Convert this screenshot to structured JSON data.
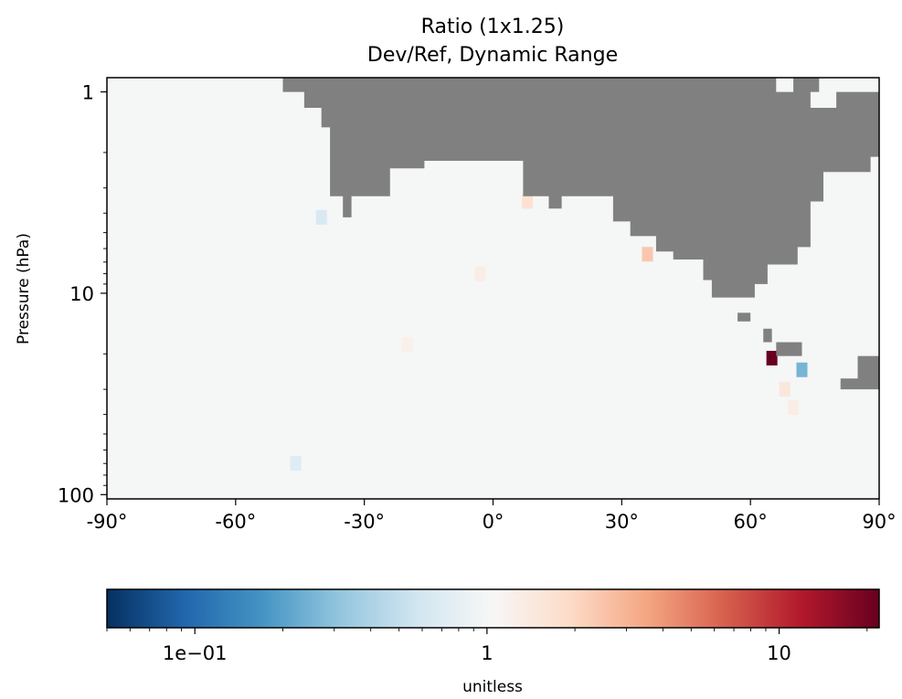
{
  "chart_data": {
    "type": "heatmap",
    "title": "Ratio (1x1.25)",
    "subtitle": "Dev/Ref, Dynamic Range",
    "xlabel": "",
    "ylabel": "Pressure (hPa)",
    "xlim": [
      -90,
      90
    ],
    "ylim": [
      105,
      0.85
    ],
    "y_scale": "log",
    "x_ticks": [
      "-90°",
      "-60°",
      "-30°",
      "0°",
      "30°",
      "60°",
      "90°"
    ],
    "x_tick_values": [
      -90,
      -60,
      -30,
      0,
      30,
      60,
      90
    ],
    "y_ticks": [
      "1",
      "10",
      "100"
    ],
    "y_tick_values": [
      1,
      10,
      100
    ],
    "masked_color": "#808080",
    "background_ratio": 1.0,
    "features": [
      {
        "lat": 65,
        "pressure": 21,
        "ratio": 20
      },
      {
        "lat": 72,
        "pressure": 24,
        "ratio": 0.4
      },
      {
        "lat": 36,
        "pressure": 6.4,
        "ratio": 1.8
      },
      {
        "lat": 8,
        "pressure": 3.5,
        "ratio": 1.4
      },
      {
        "lat": -3,
        "pressure": 8,
        "ratio": 1.2
      },
      {
        "lat": -40,
        "pressure": 4.2,
        "ratio": 0.75
      },
      {
        "lat": -46,
        "pressure": 70,
        "ratio": 0.8
      },
      {
        "lat": -20,
        "pressure": 18,
        "ratio": 1.15
      },
      {
        "lat": 68,
        "pressure": 30,
        "ratio": 1.3
      },
      {
        "lat": 70,
        "pressure": 37,
        "ratio": 1.2
      }
    ],
    "colorbar": {
      "label": "unitless",
      "scale": "log",
      "range": [
        0.05,
        22
      ],
      "colormap": "RdBu_r",
      "tick_labels": [
        "1e−01",
        "1",
        "10"
      ],
      "tick_values": [
        0.1,
        1,
        10
      ],
      "colors": [
        "#053061",
        "#2166ac",
        "#4393c3",
        "#92c5de",
        "#d1e5f0",
        "#f7f7f7",
        "#fddbc7",
        "#f4a582",
        "#d6604d",
        "#b2182b",
        "#67001f"
      ]
    }
  }
}
